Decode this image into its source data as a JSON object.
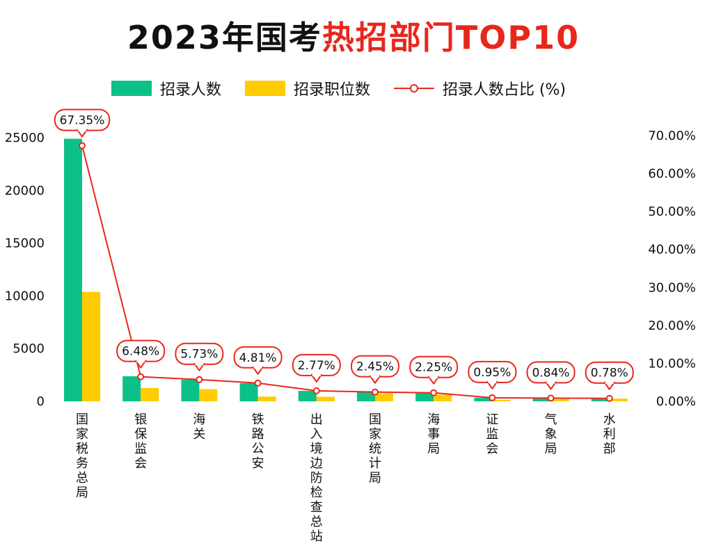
{
  "title": {
    "part1": "2023年国考",
    "part2": "热招部门TOP10"
  },
  "colors": {
    "people": "#0cc187",
    "positions": "#ffcc00",
    "ratio": "#e8271c"
  },
  "chart_data": {
    "type": "bar",
    "categories": [
      "国家税务总局",
      "银保监会",
      "海关",
      "铁路公安",
      "出入境边防检查总站",
      "国家统计局",
      "海事局",
      "证监会",
      "气象局",
      "水利部"
    ],
    "series": [
      {
        "name": "招录人数",
        "axis": "left",
        "values": [
          24898,
          2379,
          2047,
          1720,
          988,
          876,
          806,
          340,
          301,
          279
        ]
      },
      {
        "name": "招录职位数",
        "axis": "left",
        "values": [
          10380,
          1260,
          1150,
          450,
          430,
          760,
          640,
          140,
          230,
          260
        ]
      },
      {
        "name": "招录人数占比 (%)",
        "axis": "right",
        "type": "line",
        "values": [
          67.35,
          6.48,
          5.73,
          4.81,
          2.77,
          2.45,
          2.25,
          0.95,
          0.84,
          0.78
        ],
        "labels": [
          "67.35%",
          "6.48%",
          "5.73%",
          "4.81%",
          "2.77%",
          "2.45%",
          "2.25%",
          "0.95%",
          "0.84%",
          "0.78%"
        ]
      }
    ],
    "y_left": {
      "range": [
        0,
        25000
      ],
      "ticks": [
        "0",
        "5000",
        "10000",
        "15000",
        "20000",
        "25000"
      ]
    },
    "y_right": {
      "range": [
        0,
        70
      ],
      "ticks": [
        "0.00%",
        "10.00%",
        "20.00%",
        "30.00%",
        "40.00%",
        "50.00%",
        "60.00%",
        "70.00%"
      ]
    },
    "grid": false,
    "legend_position": "top"
  }
}
